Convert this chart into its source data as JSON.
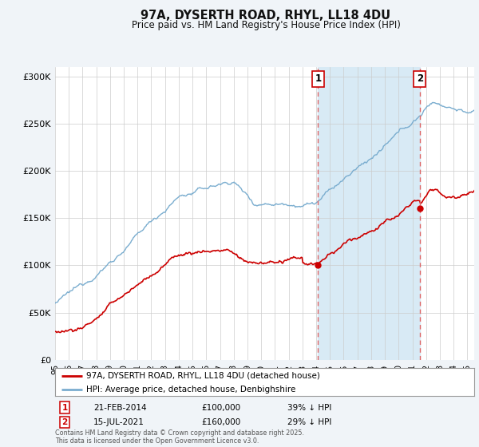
{
  "title": "97A, DYSERTH ROAD, RHYL, LL18 4DU",
  "subtitle": "Price paid vs. HM Land Registry's House Price Index (HPI)",
  "footer": "Contains HM Land Registry data © Crown copyright and database right 2025.\nThis data is licensed under the Open Government Licence v3.0.",
  "ylabel_ticks": [
    "£0",
    "£50K",
    "£100K",
    "£150K",
    "£200K",
    "£250K",
    "£300K"
  ],
  "ytick_values": [
    0,
    50000,
    100000,
    150000,
    200000,
    250000,
    300000
  ],
  "ylim": [
    0,
    310000
  ],
  "xlim_start": 1995.0,
  "xlim_end": 2025.5,
  "marker1_date": 2014.13,
  "marker1_price": 100000,
  "marker1_text": "21-FEB-2014",
  "marker1_amount": "£100,000",
  "marker1_pct": "39% ↓ HPI",
  "marker2_date": 2021.54,
  "marker2_price": 160000,
  "marker2_text": "15-JUL-2021",
  "marker2_amount": "£160,000",
  "marker2_pct": "29% ↓ HPI",
  "legend_line1": "97A, DYSERTH ROAD, RHYL, LL18 4DU (detached house)",
  "legend_line2": "HPI: Average price, detached house, Denbighshire",
  "red_color": "#cc0000",
  "blue_color": "#7aadcf",
  "fill_color": "#d8eaf5",
  "vline_color": "#dd6666",
  "background_color": "#f0f4f8",
  "plot_bg": "#ffffff",
  "grid_color": "#cccccc"
}
